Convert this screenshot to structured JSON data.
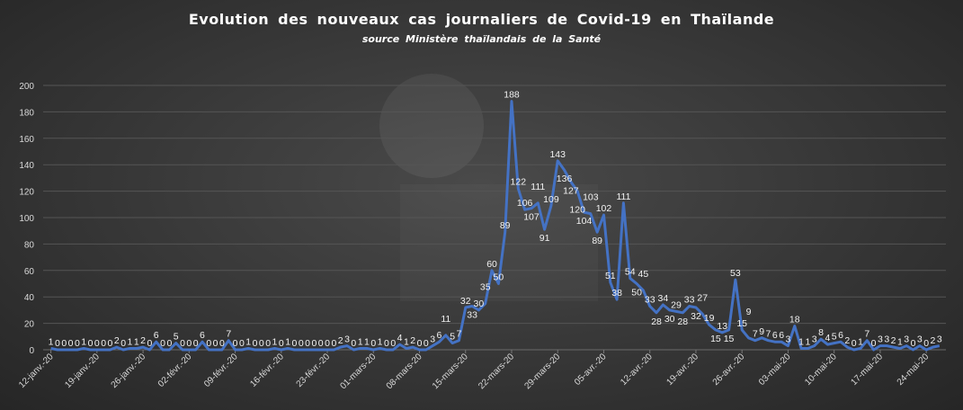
{
  "chart_data": {
    "type": "line",
    "title": "Evolution  des nouveaux  cas journaliers  de Covid-19  en Thaïlande",
    "subtitle": "source  Ministère  thaïlandais  de la Santé",
    "xlabel": "",
    "ylabel": "",
    "ylim": [
      0,
      200
    ],
    "yticks": [
      0,
      20,
      40,
      60,
      80,
      100,
      120,
      140,
      160,
      180,
      200
    ],
    "grid": true,
    "legend": "none",
    "line_color": "#4472c4",
    "x": [
      "12-janv.-20",
      "13-janv.-20",
      "14-janv.-20",
      "15-janv.-20",
      "16-janv.-20",
      "17-janv.-20",
      "18-janv.-20",
      "19-janv.-20",
      "20-janv.-20",
      "21-janv.-20",
      "22-janv.-20",
      "23-janv.-20",
      "24-janv.-20",
      "25-janv.-20",
      "26-janv.-20",
      "27-janv.-20",
      "28-janv.-20",
      "29-janv.-20",
      "30-janv.-20",
      "31-janv.-20",
      "01-févr.-20",
      "02-févr.-20",
      "03-févr.-20",
      "04-févr.-20",
      "05-févr.-20",
      "06-févr.-20",
      "07-févr.-20",
      "08-févr.-20",
      "09-févr.-20",
      "10-févr.-20",
      "11-févr.-20",
      "12-févr.-20",
      "13-févr.-20",
      "14-févr.-20",
      "15-févr.-20",
      "16-févr.-20",
      "17-févr.-20",
      "18-févr.-20",
      "19-févr.-20",
      "20-févr.-20",
      "21-févr.-20",
      "22-févr.-20",
      "23-févr.-20",
      "24-févr.-20",
      "25-févr.-20",
      "26-févr.-20",
      "27-févr.-20",
      "28-févr.-20",
      "29-févr.-20",
      "01-mars-20",
      "02-mars-20",
      "03-mars-20",
      "04-mars-20",
      "05-mars-20",
      "06-mars-20",
      "07-mars-20",
      "08-mars-20",
      "09-mars-20",
      "10-mars-20",
      "11-mars-20",
      "12-mars-20",
      "13-mars-20",
      "14-mars-20",
      "15-mars-20",
      "16-mars-20",
      "17-mars-20",
      "18-mars-20",
      "19-mars-20",
      "20-mars-20",
      "21-mars-20",
      "22-mars-20",
      "23-mars-20",
      "24-mars-20",
      "25-mars-20",
      "26-mars-20",
      "27-mars-20",
      "28-mars-20",
      "29-mars-20",
      "30-mars-20",
      "31-mars-20",
      "01-avr.-20",
      "02-avr.-20",
      "03-avr.-20",
      "04-avr.-20",
      "05-avr.-20",
      "06-avr.-20",
      "07-avr.-20",
      "08-avr.-20",
      "09-avr.-20",
      "10-avr.-20",
      "11-avr.-20",
      "12-avr.-20",
      "13-avr.-20",
      "14-avr.-20",
      "15-avr.-20",
      "16-avr.-20",
      "17-avr.-20",
      "18-avr.-20",
      "19-avr.-20",
      "20-avr.-20",
      "21-avr.-20",
      "22-avr.-20",
      "23-avr.-20",
      "24-avr.-20",
      "25-avr.-20",
      "26-avr.-20",
      "27-avr.-20",
      "28-avr.-20",
      "29-avr.-20",
      "30-avr.-20",
      "01-mai-20",
      "02-mai-20",
      "03-mai-20",
      "04-mai-20",
      "05-mai-20",
      "06-mai-20",
      "07-mai-20",
      "08-mai-20",
      "09-mai-20",
      "10-mai-20",
      "11-mai-20",
      "12-mai-20",
      "13-mai-20",
      "14-mai-20",
      "15-mai-20",
      "16-mai-20",
      "17-mai-20",
      "18-mai-20",
      "19-mai-20",
      "20-mai-20",
      "21-mai-20",
      "22-mai-20",
      "23-mai-20",
      "24-mai-20",
      "25-mai-20",
      "26-mai-20"
    ],
    "x_tick_every_days": 7,
    "values": [
      1,
      0,
      0,
      0,
      0,
      1,
      0,
      0,
      0,
      0,
      2,
      0,
      1,
      1,
      2,
      0,
      6,
      0,
      0,
      5,
      0,
      0,
      0,
      6,
      0,
      0,
      0,
      7,
      0,
      0,
      1,
      0,
      0,
      0,
      1,
      0,
      1,
      0,
      0,
      0,
      0,
      0,
      0,
      0,
      2,
      3,
      0,
      1,
      1,
      0,
      1,
      0,
      0,
      4,
      1,
      2,
      0,
      0,
      3,
      6,
      11,
      5,
      7,
      32,
      33,
      30,
      35,
      60,
      50,
      89,
      188,
      122,
      106,
      107,
      111,
      91,
      109,
      143,
      136,
      127,
      120,
      104,
      103,
      89,
      102,
      51,
      38,
      111,
      54,
      50,
      45,
      33,
      28,
      34,
      30,
      29,
      28,
      33,
      32,
      27,
      19,
      15,
      13,
      15,
      53,
      15,
      9,
      7,
      9,
      7,
      6,
      6,
      3,
      18,
      1,
      1,
      3,
      8,
      4,
      5,
      6,
      2,
      0,
      1,
      7,
      0,
      3,
      3,
      2,
      1,
      3,
      0,
      3,
      0,
      2,
      3
    ]
  }
}
